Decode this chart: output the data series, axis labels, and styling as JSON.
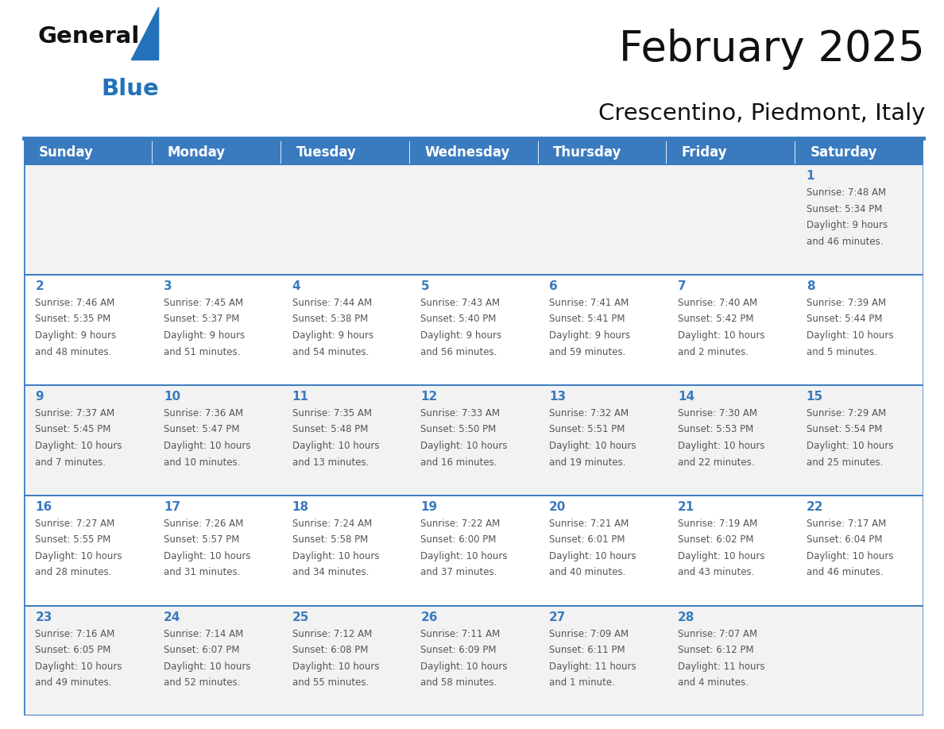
{
  "title": "February 2025",
  "subtitle": "Crescentino, Piedmont, Italy",
  "header_bg": "#3A7BBF",
  "header_text_color": "#FFFFFF",
  "cell_bg_row0": "#F2F2F2",
  "cell_bg_row1": "#FFFFFF",
  "cell_bg_row2": "#F2F2F2",
  "cell_bg_row3": "#FFFFFF",
  "cell_bg_row4": "#F2F2F2",
  "border_color": "#3A7BBF",
  "text_color": "#555555",
  "day_number_color": "#3A7BBF",
  "days_of_week": [
    "Sunday",
    "Monday",
    "Tuesday",
    "Wednesday",
    "Thursday",
    "Friday",
    "Saturday"
  ],
  "weeks": [
    [
      null,
      null,
      null,
      null,
      null,
      null,
      1
    ],
    [
      2,
      3,
      4,
      5,
      6,
      7,
      8
    ],
    [
      9,
      10,
      11,
      12,
      13,
      14,
      15
    ],
    [
      16,
      17,
      18,
      19,
      20,
      21,
      22
    ],
    [
      23,
      24,
      25,
      26,
      27,
      28,
      null
    ]
  ],
  "day_data": {
    "1": {
      "sunrise": "7:48 AM",
      "sunset": "5:34 PM",
      "daylight": "9 hours and 46 minutes"
    },
    "2": {
      "sunrise": "7:46 AM",
      "sunset": "5:35 PM",
      "daylight": "9 hours and 48 minutes"
    },
    "3": {
      "sunrise": "7:45 AM",
      "sunset": "5:37 PM",
      "daylight": "9 hours and 51 minutes"
    },
    "4": {
      "sunrise": "7:44 AM",
      "sunset": "5:38 PM",
      "daylight": "9 hours and 54 minutes"
    },
    "5": {
      "sunrise": "7:43 AM",
      "sunset": "5:40 PM",
      "daylight": "9 hours and 56 minutes"
    },
    "6": {
      "sunrise": "7:41 AM",
      "sunset": "5:41 PM",
      "daylight": "9 hours and 59 minutes"
    },
    "7": {
      "sunrise": "7:40 AM",
      "sunset": "5:42 PM",
      "daylight": "10 hours and 2 minutes"
    },
    "8": {
      "sunrise": "7:39 AM",
      "sunset": "5:44 PM",
      "daylight": "10 hours and 5 minutes"
    },
    "9": {
      "sunrise": "7:37 AM",
      "sunset": "5:45 PM",
      "daylight": "10 hours and 7 minutes"
    },
    "10": {
      "sunrise": "7:36 AM",
      "sunset": "5:47 PM",
      "daylight": "10 hours and 10 minutes"
    },
    "11": {
      "sunrise": "7:35 AM",
      "sunset": "5:48 PM",
      "daylight": "10 hours and 13 minutes"
    },
    "12": {
      "sunrise": "7:33 AM",
      "sunset": "5:50 PM",
      "daylight": "10 hours and 16 minutes"
    },
    "13": {
      "sunrise": "7:32 AM",
      "sunset": "5:51 PM",
      "daylight": "10 hours and 19 minutes"
    },
    "14": {
      "sunrise": "7:30 AM",
      "sunset": "5:53 PM",
      "daylight": "10 hours and 22 minutes"
    },
    "15": {
      "sunrise": "7:29 AM",
      "sunset": "5:54 PM",
      "daylight": "10 hours and 25 minutes"
    },
    "16": {
      "sunrise": "7:27 AM",
      "sunset": "5:55 PM",
      "daylight": "10 hours and 28 minutes"
    },
    "17": {
      "sunrise": "7:26 AM",
      "sunset": "5:57 PM",
      "daylight": "10 hours and 31 minutes"
    },
    "18": {
      "sunrise": "7:24 AM",
      "sunset": "5:58 PM",
      "daylight": "10 hours and 34 minutes"
    },
    "19": {
      "sunrise": "7:22 AM",
      "sunset": "6:00 PM",
      "daylight": "10 hours and 37 minutes"
    },
    "20": {
      "sunrise": "7:21 AM",
      "sunset": "6:01 PM",
      "daylight": "10 hours and 40 minutes"
    },
    "21": {
      "sunrise": "7:19 AM",
      "sunset": "6:02 PM",
      "daylight": "10 hours and 43 minutes"
    },
    "22": {
      "sunrise": "7:17 AM",
      "sunset": "6:04 PM",
      "daylight": "10 hours and 46 minutes"
    },
    "23": {
      "sunrise": "7:16 AM",
      "sunset": "6:05 PM",
      "daylight": "10 hours and 49 minutes"
    },
    "24": {
      "sunrise": "7:14 AM",
      "sunset": "6:07 PM",
      "daylight": "10 hours and 52 minutes"
    },
    "25": {
      "sunrise": "7:12 AM",
      "sunset": "6:08 PM",
      "daylight": "10 hours and 55 minutes"
    },
    "26": {
      "sunrise": "7:11 AM",
      "sunset": "6:09 PM",
      "daylight": "10 hours and 58 minutes"
    },
    "27": {
      "sunrise": "7:09 AM",
      "sunset": "6:11 PM",
      "daylight": "11 hours and 1 minute"
    },
    "28": {
      "sunrise": "7:07 AM",
      "sunset": "6:12 PM",
      "daylight": "11 hours and 4 minutes"
    }
  },
  "title_fontsize": 38,
  "subtitle_fontsize": 21,
  "header_fontsize": 12,
  "day_num_fontsize": 11,
  "cell_text_fontsize": 8.5,
  "logo_general_fontsize": 21,
  "logo_blue_fontsize": 21
}
